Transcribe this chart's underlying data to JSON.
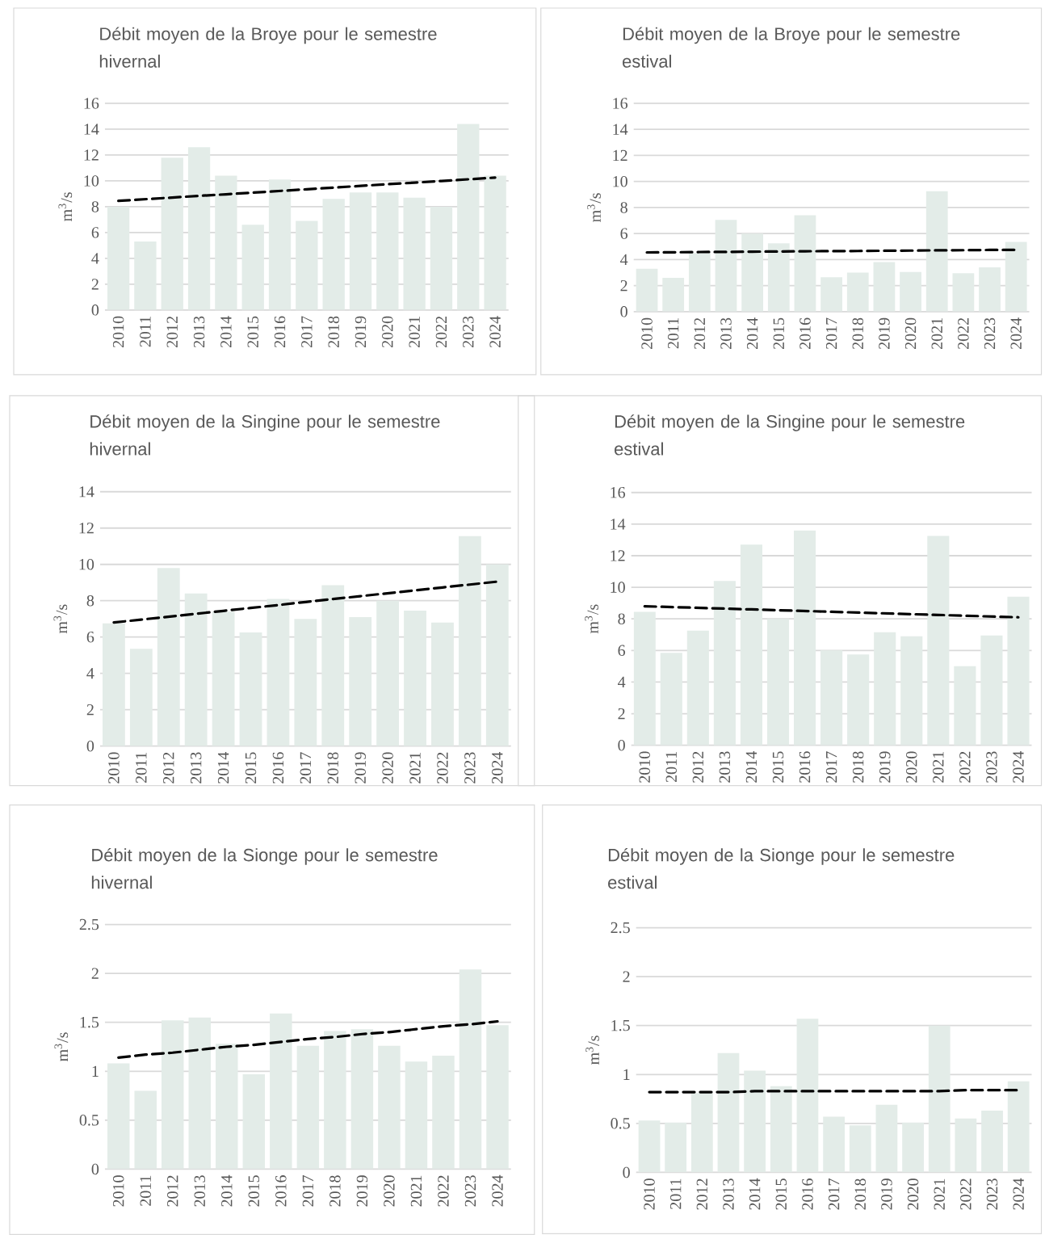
{
  "chart_data": [
    {
      "type": "bar",
      "title": "Débit moyen de la Broye pour le semestre hivernal",
      "ylabel": "m$^{3}$/s",
      "x": [
        2010,
        2011,
        2012,
        2013,
        2014,
        2015,
        2016,
        2017,
        2018,
        2019,
        2020,
        2021,
        2022,
        2023,
        2024
      ],
      "xlim": [
        2009.5,
        2024.5
      ],
      "xticks": [
        2010,
        2011,
        2012,
        2013,
        2014,
        2015,
        2016,
        2017,
        2018,
        2019,
        2020,
        2021,
        2022,
        2023,
        2024
      ],
      "ylim": [
        0,
        16
      ],
      "yticks": [
        0,
        2,
        4,
        6,
        8,
        10,
        12,
        14,
        16
      ],
      "grid": "y",
      "series": [
        {
          "color": "#e3ece8",
          "values": [
            8.0,
            5.3,
            11.8,
            12.6,
            10.4,
            6.6,
            10.1,
            6.9,
            8.6,
            9.1,
            9.1,
            8.7,
            8.0,
            14.4,
            10.4
          ]
        },
        {
          "type": "line",
          "color": "#000000",
          "line_style": "dashed",
          "marker": "none",
          "values": [
            8.45,
            8.58,
            8.71,
            8.84,
            8.96,
            9.09,
            9.22,
            9.35,
            9.48,
            9.61,
            9.74,
            9.86,
            9.99,
            10.12,
            10.25
          ]
        }
      ]
    },
    {
      "type": "bar",
      "title": "Débit moyen de la Broye pour le semestre estival",
      "ylabel": "m$^{3}$/s",
      "x": [
        2010,
        2011,
        2012,
        2013,
        2014,
        2015,
        2016,
        2017,
        2018,
        2019,
        2020,
        2021,
        2022,
        2023,
        2024
      ],
      "xlim": [
        2009.5,
        2024.5
      ],
      "xticks": [
        2010,
        2011,
        2012,
        2013,
        2014,
        2015,
        2016,
        2017,
        2018,
        2019,
        2020,
        2021,
        2022,
        2023,
        2024
      ],
      "ylim": [
        0,
        16
      ],
      "yticks": [
        0,
        2,
        4,
        6,
        8,
        10,
        12,
        14,
        16
      ],
      "grid": "y",
      "series": [
        {
          "color": "#e3ece8",
          "values": [
            3.3,
            2.6,
            4.5,
            7.05,
            6.0,
            5.25,
            7.4,
            2.65,
            3.0,
            3.8,
            3.05,
            9.25,
            2.95,
            3.4,
            5.35
          ]
        },
        {
          "type": "line",
          "color": "#000000",
          "line_style": "dashed",
          "marker": "none",
          "values": [
            4.55,
            4.56,
            4.58,
            4.59,
            4.61,
            4.62,
            4.64,
            4.65,
            4.66,
            4.68,
            4.69,
            4.71,
            4.72,
            4.74,
            4.75
          ]
        }
      ]
    },
    {
      "type": "bar",
      "title": "Débit moyen de la Singine pour le semestre hivernal",
      "ylabel": "m$^{3}$/s",
      "x": [
        2010,
        2011,
        2012,
        2013,
        2014,
        2015,
        2016,
        2017,
        2018,
        2019,
        2020,
        2021,
        2022,
        2023,
        2024
      ],
      "xlim": [
        2009.5,
        2024.5
      ],
      "xticks": [
        2010,
        2011,
        2012,
        2013,
        2014,
        2015,
        2016,
        2017,
        2018,
        2019,
        2020,
        2021,
        2022,
        2023,
        2024
      ],
      "ylim": [
        0,
        14
      ],
      "yticks": [
        0,
        2,
        4,
        6,
        8,
        10,
        12,
        14
      ],
      "grid": "y",
      "series": [
        {
          "color": "#e3ece8",
          "values": [
            6.75,
            5.35,
            9.8,
            8.4,
            7.4,
            6.25,
            8.1,
            7.0,
            8.85,
            7.1,
            8.0,
            7.45,
            6.8,
            11.55,
            10.0
          ]
        },
        {
          "type": "line",
          "color": "#000000",
          "line_style": "dashed",
          "marker": "none",
          "values": [
            6.8,
            6.96,
            7.12,
            7.28,
            7.44,
            7.6,
            7.76,
            7.93,
            8.09,
            8.25,
            8.41,
            8.57,
            8.73,
            8.89,
            9.05
          ]
        }
      ]
    },
    {
      "type": "bar",
      "title": "Débit moyen de la Singine pour le semestre estival",
      "ylabel": "m$^{3}$/s",
      "x": [
        2010,
        2011,
        2012,
        2013,
        2014,
        2015,
        2016,
        2017,
        2018,
        2019,
        2020,
        2021,
        2022,
        2023,
        2024
      ],
      "xlim": [
        2009.5,
        2024.5
      ],
      "xticks": [
        2010,
        2011,
        2012,
        2013,
        2014,
        2015,
        2016,
        2017,
        2018,
        2019,
        2020,
        2021,
        2022,
        2023,
        2024
      ],
      "ylim": [
        0,
        16
      ],
      "yticks": [
        0,
        2,
        4,
        6,
        8,
        10,
        12,
        14,
        16
      ],
      "grid": "y",
      "series": [
        {
          "color": "#e3ece8",
          "values": [
            8.45,
            5.85,
            7.25,
            10.4,
            12.7,
            8.0,
            13.6,
            6.0,
            5.75,
            7.15,
            6.9,
            13.25,
            5.0,
            6.95,
            9.4
          ]
        },
        {
          "type": "line",
          "color": "#000000",
          "line_style": "dashed",
          "marker": "none",
          "values": [
            8.8,
            8.75,
            8.7,
            8.65,
            8.6,
            8.55,
            8.5,
            8.45,
            8.4,
            8.35,
            8.3,
            8.25,
            8.2,
            8.15,
            8.1
          ]
        }
      ]
    },
    {
      "type": "bar",
      "title": "Débit moyen de la Sionge pour le semestre hivernal",
      "ylabel": "m$^{3}$/s",
      "x": [
        2010,
        2011,
        2012,
        2013,
        2014,
        2015,
        2016,
        2017,
        2018,
        2019,
        2020,
        2021,
        2022,
        2023,
        2024
      ],
      "xlim": [
        2009.5,
        2024.5
      ],
      "xticks": [
        2010,
        2011,
        2012,
        2013,
        2014,
        2015,
        2016,
        2017,
        2018,
        2019,
        2020,
        2021,
        2022,
        2023,
        2024
      ],
      "ylim": [
        0,
        2.5
      ],
      "yticks": [
        0,
        0.5,
        1,
        1.5,
        2,
        2.5
      ],
      "grid": "y",
      "series": [
        {
          "color": "#e3ece8",
          "values": [
            1.08,
            0.8,
            1.52,
            1.55,
            1.28,
            0.97,
            1.59,
            1.26,
            1.41,
            1.43,
            1.26,
            1.1,
            1.16,
            2.04,
            1.47
          ]
        },
        {
          "type": "line",
          "color": "#000000",
          "line_style": "dashed",
          "marker": "none",
          "values": [
            1.14,
            1.17,
            1.19,
            1.22,
            1.25,
            1.27,
            1.3,
            1.33,
            1.35,
            1.38,
            1.4,
            1.43,
            1.46,
            1.48,
            1.51
          ]
        }
      ]
    },
    {
      "type": "bar",
      "title": "Débit moyen de la Sionge pour le semestre estival",
      "ylabel": "m$^{3}$/s",
      "x": [
        2010,
        2011,
        2012,
        2013,
        2014,
        2015,
        2016,
        2017,
        2018,
        2019,
        2020,
        2021,
        2022,
        2023,
        2024
      ],
      "xlim": [
        2009.5,
        2024.5
      ],
      "xticks": [
        2010,
        2011,
        2012,
        2013,
        2014,
        2015,
        2016,
        2017,
        2018,
        2019,
        2020,
        2021,
        2022,
        2023,
        2024
      ],
      "ylim": [
        0,
        2.5
      ],
      "yticks": [
        0,
        0.5,
        1,
        1.5,
        2,
        2.5
      ],
      "grid": "y",
      "series": [
        {
          "color": "#e3ece8",
          "values": [
            0.53,
            0.51,
            0.81,
            1.22,
            1.04,
            0.88,
            1.57,
            0.57,
            0.48,
            0.69,
            0.51,
            1.5,
            0.55,
            0.63,
            0.93
          ]
        },
        {
          "type": "line",
          "color": "#000000",
          "line_style": "dashed",
          "marker": "none",
          "values": [
            0.82,
            0.82,
            0.82,
            0.82,
            0.83,
            0.83,
            0.83,
            0.83,
            0.83,
            0.83,
            0.83,
            0.83,
            0.84,
            0.84,
            0.84
          ]
        }
      ]
    }
  ]
}
